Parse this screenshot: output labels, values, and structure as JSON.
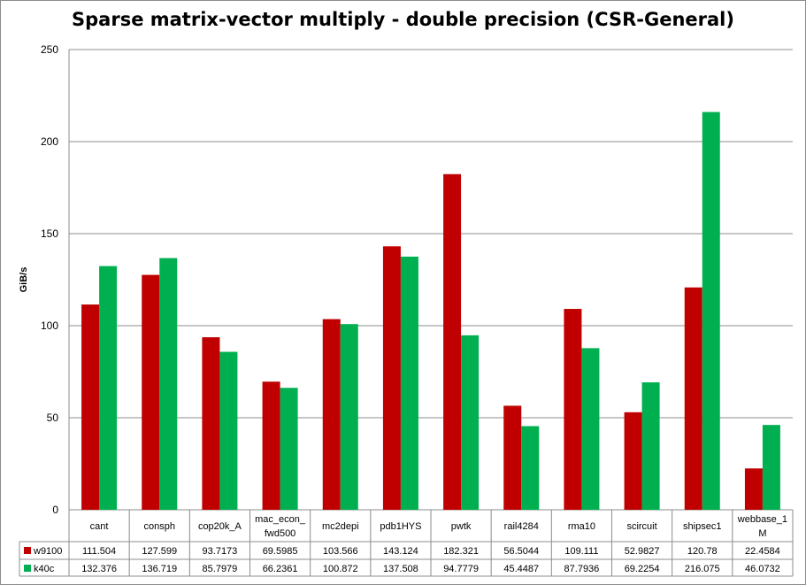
{
  "chart_data": {
    "type": "bar",
    "title": "Sparse matrix-vector multiply - double precision (CSR-General)",
    "ylabel": "GiB/s",
    "xlabel": "",
    "ylim": [
      0,
      250
    ],
    "yticks": [
      0,
      50,
      100,
      150,
      200,
      250
    ],
    "grid": true,
    "legend": "table-bottom",
    "categories": [
      [
        "cant"
      ],
      [
        "consph"
      ],
      [
        "cop20k_A"
      ],
      [
        "mac_econ_",
        "fwd500"
      ],
      [
        "mc2depi"
      ],
      [
        "pdb1HYS"
      ],
      [
        "pwtk"
      ],
      [
        "rail4284"
      ],
      [
        "rma10"
      ],
      [
        "scircuit"
      ],
      [
        "shipsec1"
      ],
      [
        "webbase_1",
        "M"
      ]
    ],
    "series": [
      {
        "name": "w9100",
        "color": "#c00000",
        "values": [
          111.504,
          127.599,
          93.7173,
          69.5985,
          103.566,
          143.124,
          182.321,
          56.5044,
          109.111,
          52.9827,
          120.78,
          22.4584
        ],
        "labels": [
          "111.504",
          "127.599",
          "93.7173",
          "69.5985",
          "103.566",
          "143.124",
          "182.321",
          "56.5044",
          "109.111",
          "52.9827",
          "120.78",
          "22.4584"
        ]
      },
      {
        "name": "k40c",
        "color": "#00b050",
        "values": [
          132.376,
          136.719,
          85.7979,
          66.2361,
          100.872,
          137.508,
          94.7779,
          45.4487,
          87.7936,
          69.2254,
          216.075,
          46.0732
        ],
        "labels": [
          "132.376",
          "136.719",
          "85.7979",
          "66.2361",
          "100.872",
          "137.508",
          "94.7779",
          "45.4487",
          "87.7936",
          "69.2254",
          "216.075",
          "46.0732"
        ]
      }
    ]
  }
}
